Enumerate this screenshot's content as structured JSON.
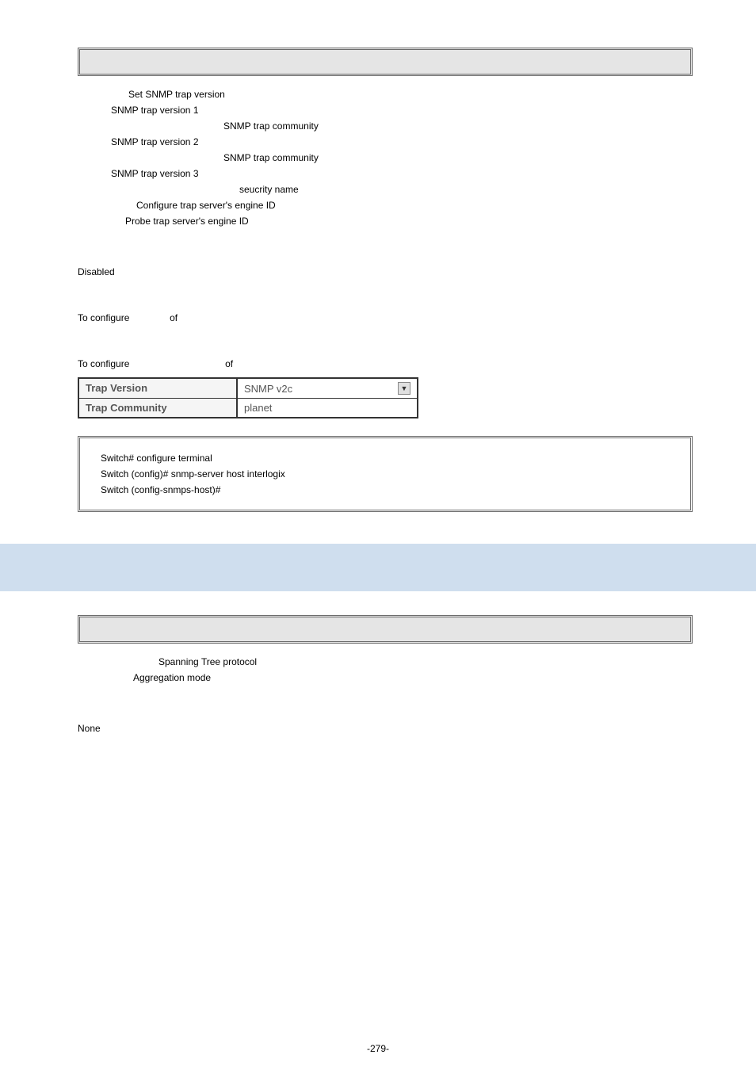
{
  "syntax_lines": [
    {
      "cls": "stx-line",
      "text": "Set SNMP trap version"
    },
    {
      "cls": "stx-line",
      "text": "SNMP trap version 1",
      "indent": 42
    },
    {
      "cls": "stx-line",
      "text": "SNMP trap community",
      "indent": 184
    },
    {
      "cls": "stx-line",
      "text": "SNMP trap version 2",
      "indent": 42
    },
    {
      "cls": "stx-line",
      "text": "SNMP trap community",
      "indent": 184
    },
    {
      "cls": "stx-line",
      "text": "SNMP trap version 3",
      "indent": 42
    },
    {
      "cls": "stx-line",
      "text": "seucrity name",
      "indent": 204
    },
    {
      "cls": "stx-line",
      "text": "Configure trap server's engine ID",
      "indent": 74
    },
    {
      "cls": "stx-line",
      "text": "Probe trap server's engine ID",
      "indent": 60
    }
  ],
  "default_text": "Disabled",
  "usage_line1_a": "To configure",
  "usage_line1_b": "of",
  "usage_line2_a": "To configure",
  "usage_line2_b": "of",
  "table": {
    "rows": [
      {
        "label": "Trap Version",
        "value": "SNMP v2c",
        "type": "select"
      },
      {
        "label": "Trap Community",
        "value": "planet",
        "type": "input"
      }
    ]
  },
  "code_lines": [
    "Switch# configure terminal",
    "Switch (config)# snmp-server host interlogix",
    "Switch (config-snmps-host)#"
  ],
  "syntax2_lines": [
    {
      "text": "Spanning Tree protocol",
      "indent": 102
    },
    {
      "text": "Aggregation mode",
      "indent": 70
    }
  ],
  "default2_text": "None",
  "page_number": "-279-"
}
